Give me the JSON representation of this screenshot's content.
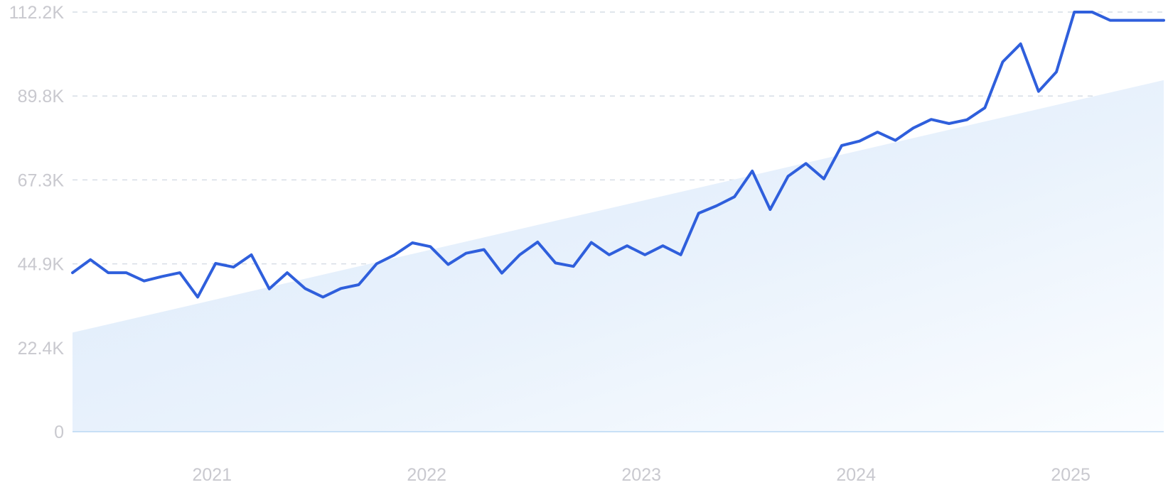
{
  "chart_data": {
    "type": "line",
    "x_tick_labels": [
      "2021",
      "2022",
      "2023",
      "2024",
      "2025"
    ],
    "y_tick_labels": [
      "0",
      "22.4K",
      "44.9K",
      "67.3K",
      "89.8K",
      "112.2K"
    ],
    "ylim": [
      0,
      112200
    ],
    "grid": true,
    "x": [
      "2020-06",
      "2020-07",
      "2020-08",
      "2020-09",
      "2020-10",
      "2020-11",
      "2020-12",
      "2021-01",
      "2021-02",
      "2021-03",
      "2021-04",
      "2021-05",
      "2021-06",
      "2021-07",
      "2021-08",
      "2021-09",
      "2021-10",
      "2021-11",
      "2021-12",
      "2022-01",
      "2022-02",
      "2022-03",
      "2022-04",
      "2022-05",
      "2022-06",
      "2022-07",
      "2022-08",
      "2022-09",
      "2022-10",
      "2022-11",
      "2022-12",
      "2023-01",
      "2023-02",
      "2023-03",
      "2023-04",
      "2023-05",
      "2023-06",
      "2023-07",
      "2023-08",
      "2023-09",
      "2023-10",
      "2023-11",
      "2023-12",
      "2024-01",
      "2024-02",
      "2024-03",
      "2024-04",
      "2024-05",
      "2024-06",
      "2024-07",
      "2024-08",
      "2024-09",
      "2024-10",
      "2024-11",
      "2024-12",
      "2025-01",
      "2025-02",
      "2025-03",
      "2025-04",
      "2025-05",
      "2025-06",
      "2025-07"
    ],
    "series": [
      {
        "values": [
          42500,
          46000,
          42500,
          42500,
          40300,
          41500,
          42500,
          36000,
          45000,
          44000,
          47300,
          38200,
          42500,
          38300,
          36000,
          38300,
          39300,
          44900,
          47300,
          50500,
          49500,
          44700,
          47700,
          48700,
          42400,
          47300,
          50700,
          45100,
          44200,
          50600,
          47300,
          49700,
          47300,
          49700,
          47300,
          58400,
          60400,
          62800,
          69700,
          59400,
          68300,
          71700,
          67600,
          76500,
          77700,
          80100,
          77900,
          81200,
          83500,
          82400,
          83400,
          86600,
          98900,
          103700,
          91000,
          96200,
          112200,
          112200,
          110000,
          110000,
          110000,
          110000
        ]
      }
    ],
    "trend": {
      "start": 26500,
      "end": 94000
    },
    "colors": {
      "line": "#2f5fdc",
      "area": "#dbe9fa",
      "grid": "#d6dde6",
      "baseline": "#b9d7f3",
      "tick_text": "#c9c9cf"
    }
  }
}
